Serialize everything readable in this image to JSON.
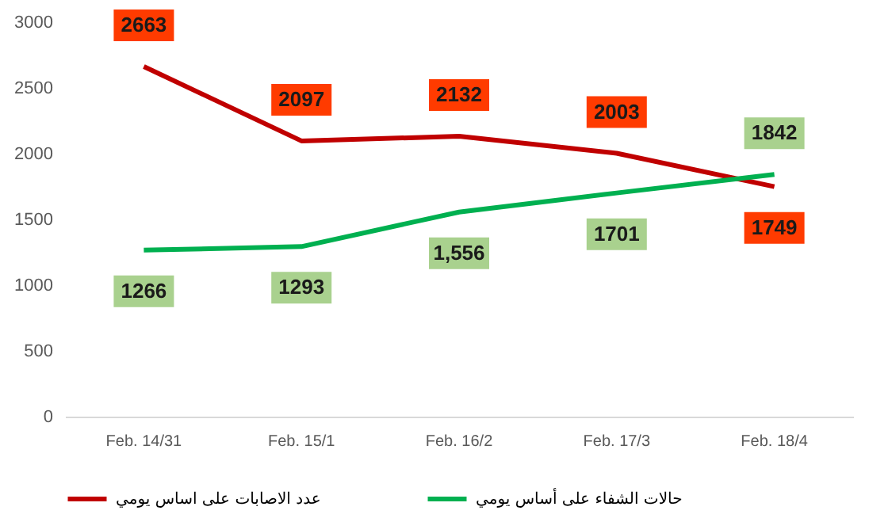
{
  "chart_data": {
    "type": "line",
    "categories": [
      "Feb. 14/31",
      "Feb. 15/1",
      "Feb. 16/2",
      "Feb. 17/3",
      "Feb. 18/4"
    ],
    "series": [
      {
        "name": "عدد الاصابات على اساس يومي",
        "color": "#c00000",
        "values": [
          2663,
          2097,
          2132,
          2003,
          1749
        ],
        "value_labels": [
          "2663",
          "2097",
          "2132",
          "2003",
          "1749"
        ]
      },
      {
        "name": "حالات الشفاء على أساس يومي",
        "color": "#00b050",
        "values": [
          1266,
          1293,
          1556,
          1701,
          1842
        ],
        "value_labels": [
          "1266",
          "1293",
          "1,556",
          "1701",
          "1842"
        ]
      }
    ],
    "ylim": [
      0,
      3000
    ],
    "yticks": [
      0,
      500,
      1000,
      1500,
      2000,
      2500,
      3000
    ],
    "grid": false,
    "legend": "bottom",
    "marker": "none",
    "line_style": "solid"
  }
}
